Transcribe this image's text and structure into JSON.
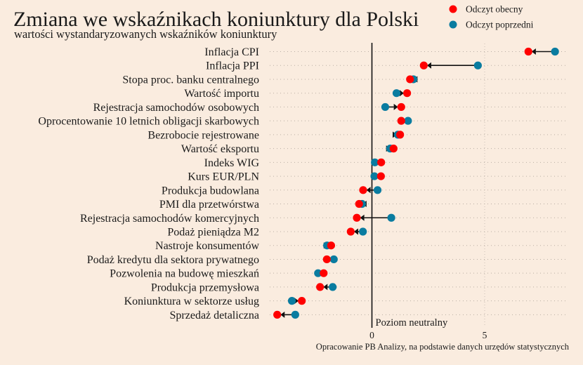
{
  "chart_data": {
    "type": "dumbbell",
    "title": "Zmiana we wskaźnikach koniunktury dla Polski",
    "subtitle": "wartości wystandaryzowanych wskaźników koniunktury",
    "xlabel": "",
    "ylabel": "",
    "xlim": [
      -4.5,
      8.5
    ],
    "xticks": [
      0,
      5
    ],
    "xtick_labels": [
      "0",
      "5"
    ],
    "grid": true,
    "legend_position": "top-right",
    "reference_line": {
      "x": 0,
      "label": "Poziom neutralny"
    },
    "source": "Opracowanie PB Analizy, na podstawie danych urzędów statystycznych",
    "series": [
      {
        "name": "Odczyt obecny",
        "color": "#FF0000"
      },
      {
        "name": "Odczyt poprzedni",
        "color": "#0A7CA0"
      }
    ],
    "arrow_color": "#111111",
    "categories": [
      "Inflacja CPI",
      "Inflacja PPI",
      "Stopa proc. banku centralnego",
      "Wartość importu",
      "Rejestracja samochodów osobowych",
      "Oprocentowanie 10 letnich obligacji skarbowych",
      "Bezrobocie rejestrowane",
      "Wartość eksportu",
      "Indeks WIG",
      "Kurs EUR/PLN",
      "Produkcja budowlana",
      "PMI dla przetwórstwa",
      "Rejestracja samochodów komercyjnych",
      "Podaż pieniądza M2",
      "Nastroje konsumentów",
      "Podaż kredytu dla sektora prywatnego",
      "Pozwolenia na budowę mieszkań",
      "Produkcja przemysłowa",
      "Koniunktura w sektorze usług",
      "Sprzedaż detaliczna"
    ],
    "current": [
      6.94,
      2.3,
      1.69,
      1.56,
      1.3,
      1.3,
      1.25,
      0.96,
      0.41,
      0.4,
      -0.39,
      -0.57,
      -0.67,
      -0.94,
      -1.81,
      -2.0,
      -2.14,
      -2.3,
      -3.11,
      -4.2
    ],
    "previous": [
      8.12,
      4.7,
      1.84,
      1.09,
      0.59,
      1.6,
      1.15,
      0.81,
      0.13,
      0.11,
      0.25,
      -0.44,
      0.86,
      -0.4,
      -1.99,
      -1.69,
      -2.39,
      -1.74,
      -3.55,
      -3.4
    ]
  }
}
